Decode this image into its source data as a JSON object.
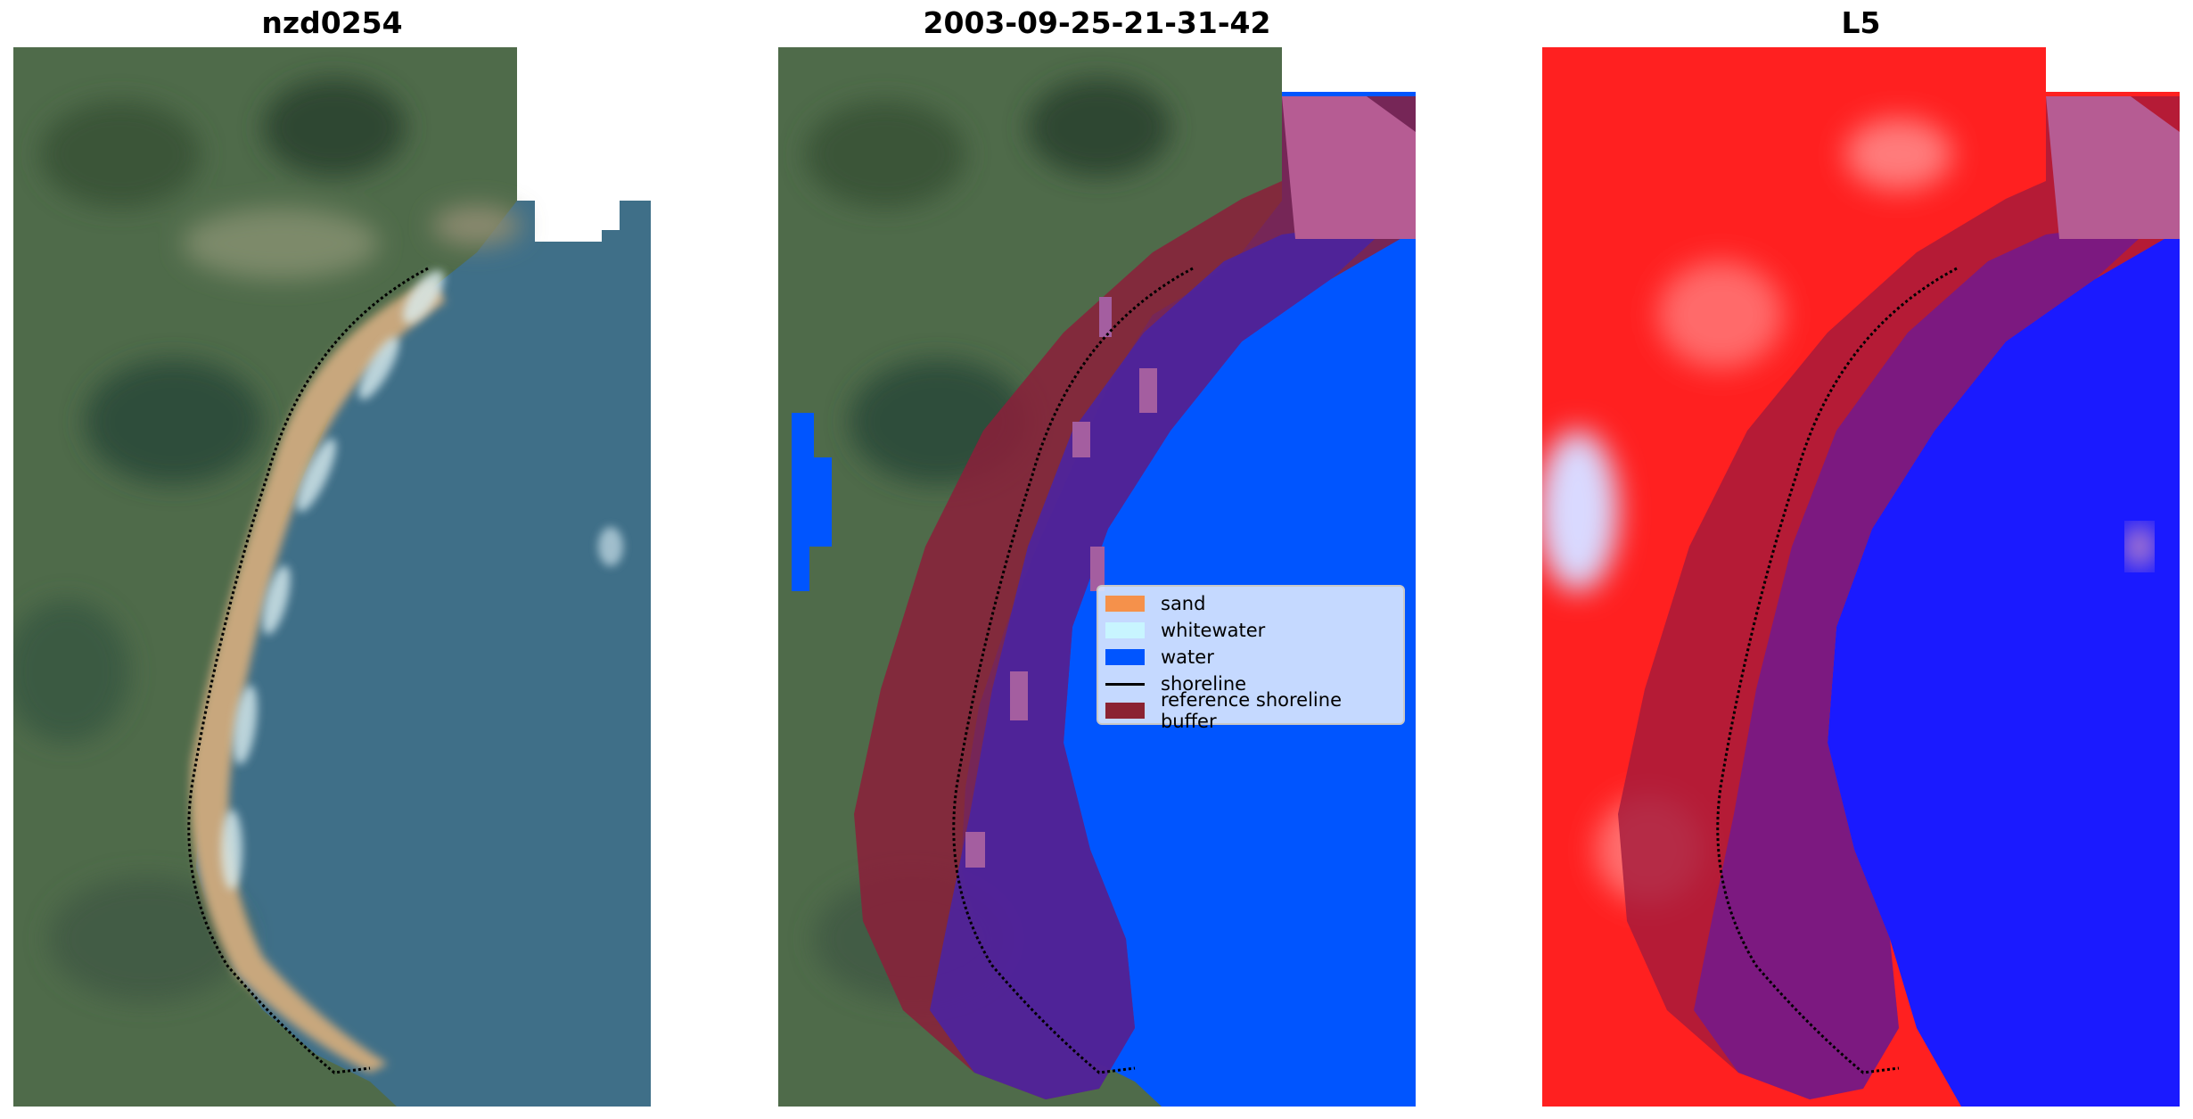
{
  "panels": [
    {
      "title": "nzd0254"
    },
    {
      "title": "2003-09-25-21-31-42"
    },
    {
      "title": "L5"
    }
  ],
  "legend": {
    "items": [
      {
        "label": "sand",
        "color": "#f5914b",
        "type": "patch"
      },
      {
        "label": "whitewater",
        "color": "#c8f5ff",
        "type": "patch"
      },
      {
        "label": "water",
        "color": "#0055ff",
        "type": "patch"
      },
      {
        "label": "shoreline",
        "color": "#000000",
        "type": "line"
      },
      {
        "label": "reference shoreline buffer",
        "color": "#8b2332",
        "type": "patch"
      }
    ]
  },
  "colors": {
    "land_green": "#4f6b4a",
    "ocean": "#3f6f88",
    "beach": "#c8a77d",
    "water_class": "#0055ff",
    "buffer": "#8b1e3a",
    "land_index": "#ff2020",
    "water_index": "#1a1aff"
  }
}
